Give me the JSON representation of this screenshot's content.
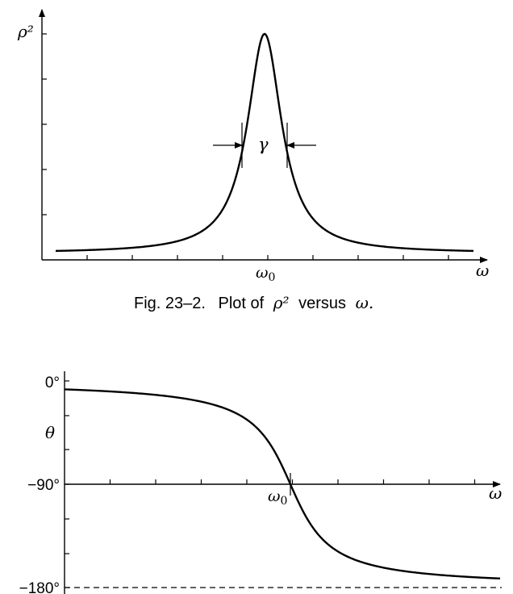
{
  "chart_data": [
    {
      "type": "line",
      "title": "",
      "ylabel": "ρ²",
      "xlabel": "ω",
      "x_marker_label": "ω0",
      "annotation": "γ",
      "caption": {
        "prefix": "Fig. 23–2.",
        "text": "Plot of",
        "symbol": "ρ²",
        "suffix_word": "versus",
        "suffix_symbol": "ω."
      },
      "xlim": [
        0,
        1
      ],
      "ylim": [
        0,
        1
      ],
      "omega0": 0.5,
      "gamma_halfwidth": 0.05,
      "peak": 1.0,
      "baseline": 0.03,
      "num_x_ticks": 9,
      "num_y_ticks": 5
    },
    {
      "type": "line",
      "title": "",
      "ylabel": "θ",
      "xlabel": "ω",
      "x_marker_label": "ω0",
      "y_tick_labels": [
        "0°",
        "−90°",
        "−180°"
      ],
      "y_tick_values": [
        0,
        -90,
        -180
      ],
      "ylim": [
        -180,
        0
      ],
      "xlim": [
        0,
        1
      ],
      "omega0": 0.5,
      "asymptote": -180,
      "num_x_ticks": 9
    }
  ]
}
